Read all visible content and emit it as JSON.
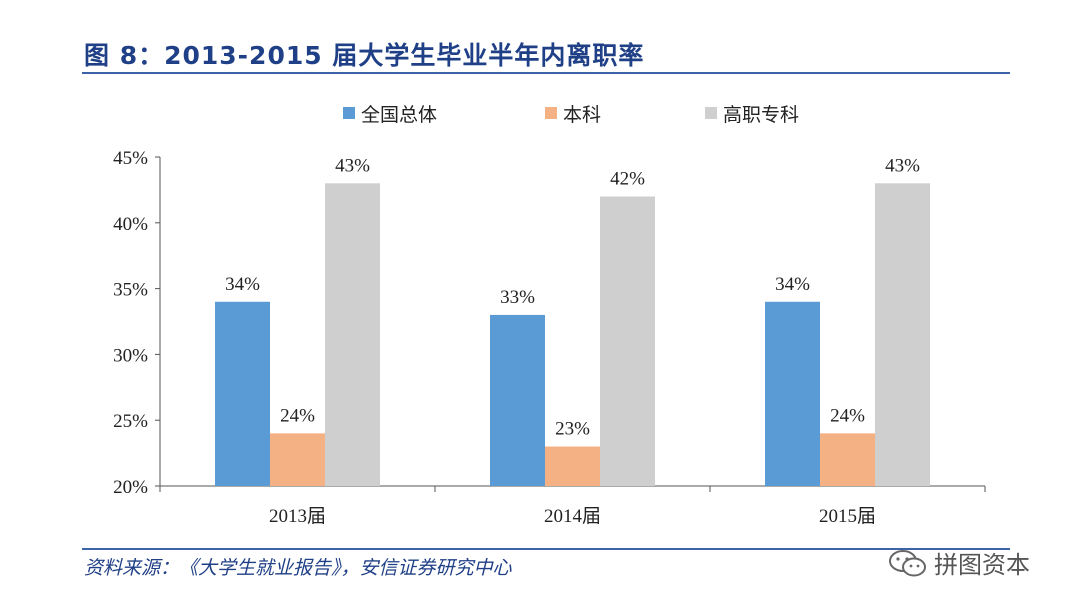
{
  "title": "图 8：2013-2015 届大学生毕业半年内离职率",
  "source": "资料来源：《大学生就业报告》，安信证券研究中心",
  "watermark": {
    "text": "拼图资本",
    "icon": "wechat-icon"
  },
  "colors": {
    "title": "#1f3f86",
    "rule": "#3b63a8"
  },
  "chart_data": {
    "type": "bar",
    "title": "",
    "xlabel": "",
    "ylabel": "",
    "categories": [
      "2013届",
      "2014届",
      "2015届"
    ],
    "series": [
      {
        "name": "全国总体",
        "values": [
          34,
          33,
          34
        ],
        "color": "#5b9bd5"
      },
      {
        "name": "本科",
        "values": [
          24,
          23,
          24
        ],
        "color": "#f4b183"
      },
      {
        "name": "高职专科",
        "values": [
          43,
          42,
          43
        ],
        "color": "#d0cfcf"
      }
    ],
    "value_suffix": "%",
    "ylim": [
      20,
      45
    ],
    "yticks": [
      20,
      25,
      30,
      35,
      40,
      45
    ],
    "ytick_labels": [
      "20%",
      "25%",
      "30%",
      "35%",
      "40%",
      "45%"
    ],
    "grid": false,
    "legend_position": "top"
  }
}
